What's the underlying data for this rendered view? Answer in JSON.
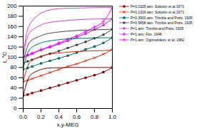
{
  "chart_data": {
    "type": "line",
    "xlabel": "x,y-MEG",
    "ylabel": "t, °C",
    "xlim": [
      0.0,
      1.0
    ],
    "ylim": [
      0,
      200
    ],
    "xticks": [
      {
        "value": 0,
        "label": "0.0"
      },
      0.2,
      0.4,
      0.6,
      0.8,
      {
        "value": 1,
        "label": "1.0"
      }
    ],
    "yticks": [
      0,
      20,
      40,
      60,
      80,
      100,
      120,
      140,
      160,
      180,
      200
    ],
    "legend": "right",
    "series": [
      {
        "name": "P=0.0329 atm: Sokolov et al,1971",
        "marker": "square",
        "color": "#800000",
        "x": [
          0.0,
          0.05,
          0.1,
          0.2,
          0.3,
          0.4,
          0.5,
          0.6,
          0.7,
          0.8,
          0.9,
          1.0
        ],
        "values": [
          25,
          27,
          30,
          35,
          40,
          45,
          50,
          55,
          60,
          65,
          71,
          80
        ]
      },
      {
        "name": "P=0.1316 atm: Sokolov et al,1971",
        "marker": "x",
        "color": "#cc2200",
        "x": [
          0.0,
          0.05,
          0.1,
          0.2,
          0.3,
          0.4,
          0.5,
          0.6,
          0.7,
          0.8,
          0.9,
          1.0
        ],
        "values": [
          52,
          55,
          58,
          64,
          70,
          76,
          82,
          87,
          93,
          99,
          106,
          115
        ]
      },
      {
        "name": "P=0.3900 atm: Trimble and Potts, 1935",
        "marker": "square",
        "color": "#006666",
        "x": [
          0.0,
          0.05,
          0.1,
          0.2,
          0.3,
          0.4,
          0.5,
          0.6,
          0.7,
          0.8,
          0.9,
          1.0
        ],
        "values": [
          76,
          79,
          82,
          88,
          93,
          98,
          103,
          109,
          115,
          121,
          128,
          138
        ]
      },
      {
        "name": "P=0.5858 atm: Trimble and Potts, 1935",
        "marker": "circle",
        "color": "#404040",
        "x": [
          0.0,
          0.05,
          0.1,
          0.2,
          0.3,
          0.4,
          0.5,
          0.6,
          0.7,
          0.8,
          0.9,
          1.0
        ],
        "values": [
          88,
          92,
          95,
          101,
          107,
          112,
          118,
          124,
          130,
          137,
          144,
          155
        ]
      },
      {
        "name": "P=1 atm: Trimble and Potts, 1935",
        "marker": "circle",
        "color": "#cc44cc",
        "x": [
          0.0,
          0.05,
          0.1,
          0.2,
          0.3,
          0.4,
          0.5,
          0.6,
          0.7,
          0.8,
          0.9,
          1.0
        ],
        "values": [
          100,
          104,
          107,
          114,
          120,
          126,
          132,
          139,
          146,
          154,
          163,
          175
        ]
      },
      {
        "name": "P=1 atm: Fox, 1948",
        "marker": "triangle",
        "color": "#cc44cc",
        "x": [
          0.0,
          0.05,
          0.1,
          0.2,
          0.3,
          0.4,
          0.5,
          0.6,
          0.7,
          0.8,
          0.9,
          1.0
        ],
        "values": [
          100,
          104,
          107,
          114,
          120,
          126,
          132,
          139,
          146,
          154,
          163,
          175
        ]
      },
      {
        "name": "P=1 atm: Ogorodnikov, et al, 1962",
        "marker": "plus",
        "color": "#ff00ff",
        "x": [
          0.0,
          0.05,
          0.1,
          0.2,
          0.3,
          0.4,
          0.5,
          0.6,
          0.7,
          0.8,
          0.9,
          1.0
        ],
        "values": [
          100,
          104,
          108,
          115,
          121,
          128,
          135,
          142,
          150,
          159,
          170,
          197
        ]
      },
      {
        "marker": "none",
        "color": "#800000",
        "x": [
          0.0,
          0.01,
          0.02,
          0.05,
          0.1,
          0.2,
          0.3,
          0.5,
          0.7,
          0.9,
          1.0
        ],
        "values": [
          25,
          30,
          38,
          55,
          68,
          76,
          79,
          80,
          80,
          80,
          80
        ]
      },
      {
        "marker": "none",
        "color": "#cc2200",
        "x": [
          0.0,
          0.01,
          0.02,
          0.05,
          0.1,
          0.2,
          0.3,
          0.5,
          0.7,
          0.9,
          1.0
        ],
        "values": [
          52,
          58,
          66,
          82,
          94,
          102,
          106,
          110,
          112,
          113,
          115
        ]
      },
      {
        "marker": "none",
        "color": "#006666",
        "x": [
          0.0,
          0.01,
          0.02,
          0.05,
          0.1,
          0.2,
          0.3,
          0.5,
          0.7,
          0.9,
          1.0
        ],
        "values": [
          76,
          84,
          92,
          108,
          120,
          128,
          132,
          136,
          137,
          138,
          138
        ]
      },
      {
        "marker": "none",
        "color": "#404040",
        "x": [
          0.0,
          0.01,
          0.02,
          0.05,
          0.1,
          0.2,
          0.3,
          0.5,
          0.7,
          0.9,
          1.0
        ],
        "values": [
          88,
          97,
          106,
          122,
          134,
          142,
          147,
          151,
          153,
          154,
          155
        ]
      },
      {
        "marker": "none",
        "color": "#cc44cc",
        "x": [
          0.0,
          0.01,
          0.02,
          0.05,
          0.1,
          0.2,
          0.3,
          0.5,
          0.7,
          0.9,
          1.0
        ],
        "values": [
          100,
          111,
          121,
          140,
          153,
          163,
          168,
          172,
          174,
          175,
          175
        ]
      },
      {
        "marker": "none",
        "color": "#cc44cc",
        "x": [
          0.0,
          0.01,
          0.02,
          0.04,
          0.08,
          0.15,
          0.25,
          0.4,
          0.6,
          0.8,
          1.0
        ],
        "values": [
          100,
          115,
          128,
          148,
          166,
          180,
          190,
          195,
          196,
          197,
          197
        ]
      }
    ]
  }
}
